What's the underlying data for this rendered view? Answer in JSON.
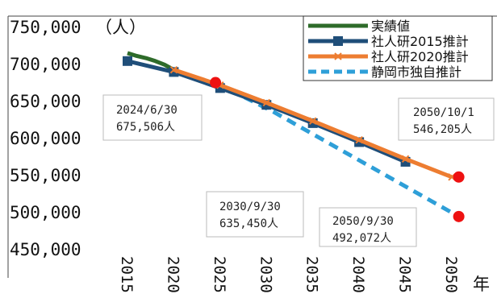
{
  "chart_data": {
    "type": "line",
    "y_unit_label": "（人）",
    "x_unit_label": "年",
    "ylim": [
      450000,
      750000
    ],
    "y_ticks": [
      750000,
      700000,
      650000,
      600000,
      550000,
      500000,
      450000
    ],
    "y_tick_labels": [
      "750,000",
      "700,000",
      "650,000",
      "600,000",
      "550,000",
      "500,000",
      "450,000"
    ],
    "x_ticks": [
      2015,
      2020,
      2025,
      2030,
      2035,
      2040,
      2045,
      2050
    ],
    "x_tick_labels": [
      "2015",
      "2020",
      "2025",
      "2030",
      "2035",
      "2040",
      "2045",
      "2050"
    ],
    "xlim": [
      2015,
      2050
    ],
    "legend_position": "top-right",
    "series": [
      {
        "name": "実績値",
        "color": "#2e6b2a",
        "marker": "none",
        "dash": "solid",
        "x": [
          2015,
          2016,
          2017,
          2018,
          2019,
          2020
        ],
        "values": [
          716000,
          712000,
          709000,
          705000,
          700000,
          693000
        ]
      },
      {
        "name": "社人研2015推計",
        "color": "#1f4e79",
        "marker": "square",
        "dash": "solid",
        "x": [
          2015,
          2020,
          2025,
          2030,
          2035,
          2040,
          2045
        ],
        "values": [
          705000,
          690000,
          668000,
          645000,
          620000,
          594000,
          567000
        ]
      },
      {
        "name": "社人研2020推計",
        "color": "#ed7d31",
        "marker": "x",
        "dash": "solid",
        "x": [
          2020,
          2025,
          2030,
          2035,
          2040,
          2045,
          2050
        ],
        "values": [
          693000,
          672000,
          648000,
          623000,
          597000,
          571000,
          546205
        ]
      },
      {
        "name": "静岡市独自推計",
        "color": "#2e9fd8",
        "marker": "none",
        "dash": "dashed",
        "x": [
          2024.5,
          2030.75,
          2050.75
        ],
        "values": [
          675506,
          635450,
          492072
        ]
      }
    ],
    "highlight_points": [
      {
        "x": 2024.5,
        "y": 675506
      },
      {
        "x": 2050.75,
        "y": 546205
      },
      {
        "x": 2050.75,
        "y": 492072
      }
    ],
    "annotations": [
      {
        "date": "2024/6/30",
        "value": "675,506人"
      },
      {
        "date": "2050/10/1",
        "value": "546,205人"
      },
      {
        "date": "2030/9/30",
        "value": "635,450人"
      },
      {
        "date": "2050/9/30",
        "value": "492,072人"
      }
    ]
  }
}
